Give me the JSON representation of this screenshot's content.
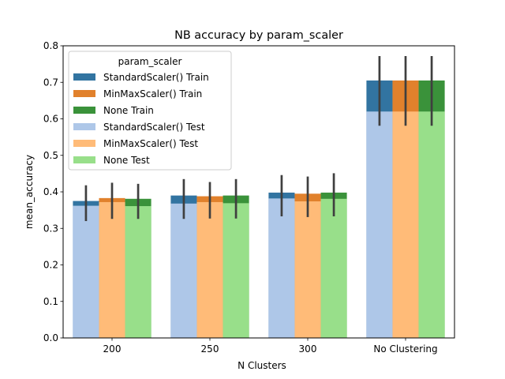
{
  "chart_data": {
    "type": "bar",
    "title": "NB accuracy by param_scaler",
    "xlabel": "N Clusters",
    "ylabel": "mean_accuracy",
    "ylim": [
      0,
      0.8
    ],
    "yticks": [
      "0.0",
      "0.1",
      "0.2",
      "0.3",
      "0.4",
      "0.5",
      "0.6",
      "0.7",
      "0.8"
    ],
    "categories": [
      "200",
      "250",
      "300",
      "No Clustering"
    ],
    "legend": {
      "title": "param_scaler",
      "position": "upper-left"
    },
    "series": [
      {
        "name": "StandardScaler() Train",
        "role": "train",
        "group": 0,
        "color": "#3274a1",
        "values": [
          0.375,
          0.39,
          0.398,
          0.705
        ]
      },
      {
        "name": "MinMaxScaler() Train",
        "role": "train",
        "group": 1,
        "color": "#e1812c",
        "values": [
          0.383,
          0.388,
          0.395,
          0.705
        ]
      },
      {
        "name": "None Train",
        "role": "train",
        "group": 2,
        "color": "#3a923a",
        "values": [
          0.381,
          0.39,
          0.398,
          0.705
        ]
      },
      {
        "name": "StandardScaler() Test",
        "role": "test",
        "group": 0,
        "color": "#aec7e8",
        "values": [
          0.362,
          0.368,
          0.382,
          0.62
        ]
      },
      {
        "name": "MinMaxScaler() Test",
        "role": "test",
        "group": 1,
        "color": "#ffbb78",
        "values": [
          0.372,
          0.372,
          0.374,
          0.62
        ]
      },
      {
        "name": "None Test",
        "role": "test",
        "group": 2,
        "color": "#98df8a",
        "values": [
          0.361,
          0.369,
          0.381,
          0.62
        ]
      }
    ],
    "error_bars": {
      "color": "#3f3f3f",
      "ranges": [
        [
          [
            0.32,
            0.418
          ],
          [
            0.326,
            0.425
          ],
          [
            0.326,
            0.422
          ]
        ],
        [
          [
            0.326,
            0.435
          ],
          [
            0.327,
            0.427
          ],
          [
            0.327,
            0.435
          ]
        ],
        [
          [
            0.333,
            0.446
          ],
          [
            0.331,
            0.442
          ],
          [
            0.333,
            0.451
          ]
        ],
        [
          [
            0.581,
            0.772
          ],
          [
            0.581,
            0.772
          ],
          [
            0.581,
            0.772
          ]
        ]
      ]
    }
  }
}
